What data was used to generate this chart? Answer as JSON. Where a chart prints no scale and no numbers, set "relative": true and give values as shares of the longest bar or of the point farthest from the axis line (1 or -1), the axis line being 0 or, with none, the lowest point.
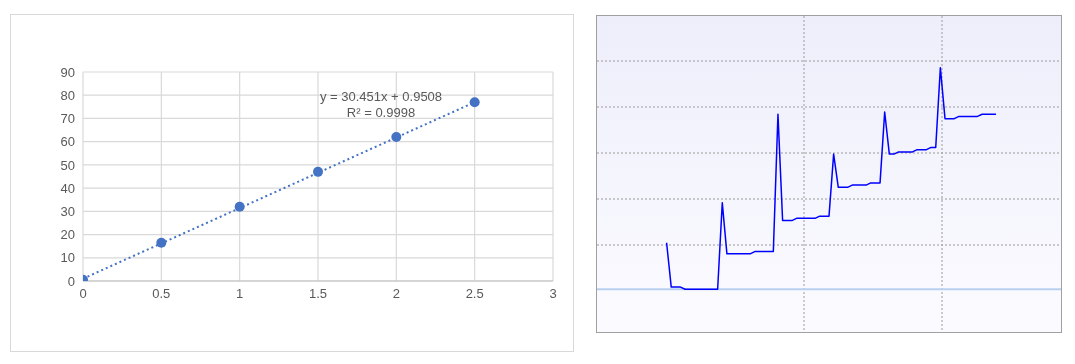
{
  "chart_data": [
    {
      "type": "scatter",
      "x": [
        0,
        0.5,
        1,
        1.5,
        2,
        2.5
      ],
      "xlim": [
        0,
        3
      ],
      "xticks": [
        0,
        0.5,
        1,
        1.5,
        2,
        2.5,
        3
      ],
      "ylim": [
        0,
        90
      ],
      "yticks": [
        0,
        10,
        20,
        30,
        40,
        50,
        60,
        70,
        80,
        90
      ],
      "grid": true,
      "marker": "circle",
      "annotations": [
        "y = 30.451x + 0.9508",
        "R² = 0.9998"
      ],
      "series": [
        {
          "type": "scatter",
          "color": "#4472c4",
          "values": [
            0.5,
            16.5,
            32,
            47,
            62,
            77
          ]
        },
        {
          "type": "line",
          "x": [
            0,
            2.5
          ],
          "values": [
            1,
            77
          ],
          "color": "#4472c4",
          "line_style": "dotted",
          "marker": "none"
        }
      ]
    },
    {
      "type": "line",
      "relative": true,
      "grid": true,
      "marker": "none",
      "color": "#0000ff",
      "categories": [
        null,
        null,
        null,
        null,
        null,
        null,
        null,
        null,
        null,
        null,
        null,
        null,
        null,
        null,
        null,
        null,
        null,
        null,
        null,
        null,
        null,
        null,
        null,
        null,
        null,
        null,
        null,
        null,
        null,
        null,
        null,
        null,
        null,
        null,
        null,
        null,
        null,
        null,
        null,
        null,
        null,
        null,
        null,
        null,
        null,
        null,
        null,
        null,
        null,
        null,
        null,
        null,
        null,
        null,
        null,
        null,
        null,
        null,
        null,
        null,
        null,
        null,
        null,
        null,
        null,
        null,
        null,
        null,
        null,
        null,
        null,
        null,
        null,
        null,
        null,
        null,
        null,
        null,
        null,
        null,
        null,
        null,
        null,
        null,
        null,
        null,
        null,
        null,
        null,
        null,
        null,
        null,
        null,
        null,
        null,
        null,
        null,
        null,
        null,
        null,
        null
      ],
      "values": [
        null,
        null,
        null,
        null,
        null,
        null,
        null,
        null,
        null,
        null,
        null,
        null,
        null,
        null,
        null,
        0.21,
        0.01,
        0.01,
        0.01,
        0,
        0,
        0,
        0,
        0,
        0,
        0,
        0,
        0.39,
        0.16,
        0.16,
        0.16,
        0.16,
        0.16,
        0.16,
        0.17,
        0.17,
        0.17,
        0.17,
        0.17,
        0.79,
        0.31,
        0.31,
        0.31,
        0.32,
        0.32,
        0.32,
        0.32,
        0.32,
        0.33,
        0.33,
        0.33,
        0.61,
        0.46,
        0.46,
        0.46,
        0.47,
        0.47,
        0.47,
        0.47,
        0.48,
        0.48,
        0.48,
        0.8,
        0.61,
        0.61,
        0.62,
        0.62,
        0.62,
        0.62,
        0.63,
        0.63,
        0.63,
        0.64,
        0.64,
        1,
        0.77,
        0.77,
        0.77,
        0.78,
        0.78,
        0.78,
        0.78,
        0.78,
        0.79,
        0.79,
        0.79,
        0.79,
        null,
        null,
        null,
        null,
        null,
        null,
        null,
        null,
        null,
        null,
        null,
        null,
        null,
        null
      ]
    }
  ]
}
